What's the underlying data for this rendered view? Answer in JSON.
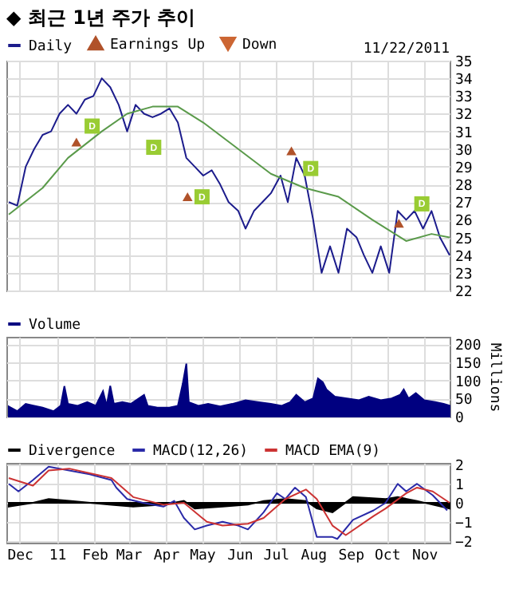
{
  "chart_data": [
    {
      "type": "line",
      "title": "◆ 최근 1년 주가 추이",
      "legend": "top",
      "grid": true,
      "tick_labels": "y",
      "xlim": [
        "2010-11-20",
        "2011-11-22"
      ],
      "xticks": [
        {
          "value": "2010-12-01",
          "label": null
        },
        {
          "value": "2011-01-01",
          "label": null
        },
        {
          "value": "2011-02-01",
          "label": null
        },
        {
          "value": "2011-03-01",
          "label": null
        },
        {
          "value": "2011-04-01",
          "label": null
        },
        {
          "value": "2011-05-01",
          "label": null
        },
        {
          "value": "2011-06-01",
          "label": null
        },
        {
          "value": "2011-07-01",
          "label": null
        },
        {
          "value": "2011-08-01",
          "label": null
        },
        {
          "value": "2011-09-01",
          "label": null
        },
        {
          "value": "2011-10-01",
          "label": null
        },
        {
          "value": "2011-11-01",
          "label": null
        }
      ],
      "ylim": [
        22,
        35
      ],
      "yticks": [
        22,
        23,
        24,
        25,
        26,
        27,
        28,
        29,
        30,
        31,
        32,
        33,
        34,
        35
      ],
      "annotations": [
        "11/22/2011",
        {
          "text": "D",
          "x": "2011-01-30",
          "y": 31.3
        },
        {
          "text": "D",
          "x": "2011-03-22",
          "y": 30.1
        },
        {
          "text": "D",
          "x": "2011-05-01",
          "y": 27.3
        },
        {
          "text": "D",
          "x": "2011-07-30",
          "y": 28.9
        },
        {
          "text": "D",
          "x": "2011-10-30",
          "y": 26.9
        }
      ],
      "series": [
        {
          "name": "Daily",
          "color": "#1c1c8c",
          "x": [
            "2010-11-22",
            "2010-11-29",
            "2010-12-06",
            "2010-12-13",
            "2010-12-20",
            "2010-12-27",
            "2011-01-03",
            "2011-01-10",
            "2011-01-17",
            "2011-01-24",
            "2011-01-31",
            "2011-02-07",
            "2011-02-14",
            "2011-02-21",
            "2011-02-28",
            "2011-03-07",
            "2011-03-14",
            "2011-03-21",
            "2011-03-28",
            "2011-04-04",
            "2011-04-11",
            "2011-04-18",
            "2011-04-25",
            "2011-05-02",
            "2011-05-09",
            "2011-05-16",
            "2011-05-23",
            "2011-05-31",
            "2011-06-06",
            "2011-06-13",
            "2011-06-20",
            "2011-06-27",
            "2011-07-05",
            "2011-07-11",
            "2011-07-18",
            "2011-07-25",
            "2011-08-01",
            "2011-08-08",
            "2011-08-15",
            "2011-08-22",
            "2011-08-29",
            "2011-09-06",
            "2011-09-12",
            "2011-09-19",
            "2011-09-26",
            "2011-10-03",
            "2011-10-10",
            "2011-10-17",
            "2011-10-24",
            "2011-10-31",
            "2011-11-07",
            "2011-11-14",
            "2011-11-22"
          ],
          "values": [
            27.0,
            26.8,
            29.0,
            30.0,
            30.8,
            31.0,
            32.0,
            32.5,
            32.0,
            32.8,
            33.0,
            34.0,
            33.5,
            32.5,
            31.0,
            32.5,
            32.0,
            31.8,
            32.0,
            32.3,
            31.5,
            29.5,
            29.0,
            28.5,
            28.8,
            28.0,
            27.0,
            26.5,
            25.5,
            26.5,
            27.0,
            27.5,
            28.5,
            27.0,
            29.5,
            28.5,
            26.0,
            23.0,
            24.5,
            23.0,
            25.5,
            25.0,
            24.0,
            23.0,
            24.5,
            23.0,
            26.5,
            26.0,
            26.5,
            25.5,
            26.5,
            25.0,
            24.0
          ]
        },
        {
          "color": "#5a9a4a",
          "x": [
            "2010-11-22",
            "2010-12-20",
            "2011-01-10",
            "2011-02-07",
            "2011-02-28",
            "2011-03-21",
            "2011-04-11",
            "2011-05-02",
            "2011-05-31",
            "2011-06-27",
            "2011-07-25",
            "2011-08-22",
            "2011-09-19",
            "2011-10-17",
            "2011-11-07",
            "2011-11-22"
          ],
          "values": [
            26.3,
            27.8,
            29.5,
            31.0,
            32.0,
            32.4,
            32.4,
            31.5,
            30.0,
            28.6,
            27.8,
            27.3,
            26.0,
            24.8,
            25.2,
            25.0
          ]
        },
        {
          "type": "scatter",
          "name": "Earnings Up",
          "color": "#b0522a",
          "marker": "triangle",
          "x": [
            "2011-01-17",
            "2011-04-19",
            "2011-07-14",
            "2011-10-11"
          ],
          "values": [
            30.4,
            27.3,
            29.9,
            25.8
          ]
        },
        {
          "type": "scatter",
          "name": "Down",
          "color": "#cc6633",
          "marker": "triangle-down"
        },
        {
          "type": "scatter",
          "color": "#99cc33",
          "marker": "square",
          "x": [
            "2011-01-30",
            "2011-03-22",
            "2011-05-01",
            "2011-07-30",
            "2011-10-30"
          ],
          "values": [
            31.3,
            30.1,
            27.3,
            28.9,
            26.9
          ]
        }
      ]
    },
    {
      "type": "area",
      "legend": "top",
      "grid": true,
      "tick_labels": "y",
      "ylabel": "Millions",
      "xlim": [
        "2010-11-20",
        "2011-11-22"
      ],
      "xticks": [
        {
          "value": "2010-12-01",
          "label": null
        },
        {
          "value": "2011-01-01",
          "label": null
        },
        {
          "value": "2011-02-01",
          "label": null
        },
        {
          "value": "2011-03-01",
          "label": null
        },
        {
          "value": "2011-04-01",
          "label": null
        },
        {
          "value": "2011-05-01",
          "label": null
        },
        {
          "value": "2011-06-01",
          "label": null
        },
        {
          "value": "2011-07-01",
          "label": null
        },
        {
          "value": "2011-08-01",
          "label": null
        },
        {
          "value": "2011-09-01",
          "label": null
        },
        {
          "value": "2011-10-01",
          "label": null
        },
        {
          "value": "2011-11-01",
          "label": null
        }
      ],
      "ylim": [
        0,
        220
      ],
      "yticks": [
        0,
        50,
        100,
        150,
        200
      ],
      "series": [
        {
          "name": "Volume",
          "color": "#000080",
          "x": [
            "2010-11-22",
            "2010-11-29",
            "2010-12-06",
            "2010-12-13",
            "2010-12-20",
            "2010-12-29",
            "2011-01-04",
            "2011-01-07",
            "2011-01-10",
            "2011-01-18",
            "2011-01-26",
            "2011-02-02",
            "2011-02-08",
            "2011-02-11",
            "2011-02-14",
            "2011-02-17",
            "2011-02-24",
            "2011-03-03",
            "2011-03-14",
            "2011-03-17",
            "2011-03-25",
            "2011-04-04",
            "2011-04-11",
            "2011-04-15",
            "2011-04-18",
            "2011-04-20",
            "2011-04-28",
            "2011-05-06",
            "2011-05-16",
            "2011-05-26",
            "2011-06-06",
            "2011-06-16",
            "2011-06-27",
            "2011-07-06",
            "2011-07-13",
            "2011-07-18",
            "2011-07-25",
            "2011-08-01",
            "2011-08-05",
            "2011-08-09",
            "2011-08-12",
            "2011-08-19",
            "2011-08-29",
            "2011-09-08",
            "2011-09-16",
            "2011-09-26",
            "2011-10-05",
            "2011-10-12",
            "2011-10-15",
            "2011-10-19",
            "2011-10-25",
            "2011-11-01",
            "2011-11-10",
            "2011-11-17",
            "2011-11-22"
          ],
          "values": [
            28,
            15,
            35,
            30,
            25,
            15,
            30,
            84,
            35,
            30,
            40,
            30,
            70,
            30,
            85,
            35,
            40,
            35,
            60,
            30,
            25,
            25,
            30,
            90,
            146,
            40,
            30,
            35,
            28,
            35,
            45,
            40,
            35,
            30,
            40,
            60,
            40,
            50,
            105,
            95,
            75,
            55,
            50,
            45,
            55,
            45,
            50,
            60,
            75,
            50,
            65,
            45,
            40,
            35,
            30
          ]
        }
      ]
    },
    {
      "type": "line",
      "legend": "top",
      "grid": true,
      "xlim": [
        "2010-11-20",
        "2011-11-22"
      ],
      "xticks": [
        {
          "value": "2010-12-01",
          "label": "Dec"
        },
        {
          "value": "2011-01-01",
          "label": "11"
        },
        {
          "value": "2011-02-01",
          "label": "Feb"
        },
        {
          "value": "2011-03-01",
          "label": "Mar"
        },
        {
          "value": "2011-04-01",
          "label": "Apr"
        },
        {
          "value": "2011-05-01",
          "label": "May"
        },
        {
          "value": "2011-06-01",
          "label": "Jun"
        },
        {
          "value": "2011-07-01",
          "label": "Jul"
        },
        {
          "value": "2011-08-01",
          "label": "Aug"
        },
        {
          "value": "2011-09-01",
          "label": "Sep"
        },
        {
          "value": "2011-10-01",
          "label": "Oct"
        },
        {
          "value": "2011-11-01",
          "label": "Nov"
        }
      ],
      "ylim": [
        -2.1,
        2.1
      ],
      "yticks": [
        -2,
        -1,
        0,
        1,
        2
      ],
      "series": [
        {
          "type": "area",
          "name": "Divergence",
          "color": "#000000",
          "x": [
            "2010-11-22",
            "2010-12-12",
            "2010-12-25",
            "2011-01-11",
            "2011-02-15",
            "2011-03-05",
            "2011-03-30",
            "2011-04-16",
            "2011-04-25",
            "2011-05-18",
            "2011-06-08",
            "2011-06-21",
            "2011-07-09",
            "2011-07-26",
            "2011-08-04",
            "2011-08-17",
            "2011-09-03",
            "2011-09-30",
            "2011-10-10",
            "2011-10-26",
            "2011-11-08",
            "2011-11-22"
          ],
          "values": [
            -0.2,
            0,
            0.2,
            0.1,
            -0.1,
            -0.2,
            -0.1,
            0.1,
            -0.3,
            -0.2,
            -0.1,
            0.1,
            0.2,
            0.1,
            -0.3,
            -0.5,
            0.3,
            0.2,
            0.3,
            0.1,
            -0.1,
            -0.3
          ]
        },
        {
          "name": "MACD(12,26)",
          "color": "#2a2aa8",
          "x": [
            "2010-11-22",
            "2010-11-30",
            "2010-12-12",
            "2010-12-25",
            "2011-01-11",
            "2011-01-28",
            "2011-02-15",
            "2011-02-19",
            "2011-02-28",
            "2011-03-13",
            "2011-03-30",
            "2011-04-08",
            "2011-04-16",
            "2011-04-25",
            "2011-05-05",
            "2011-05-18",
            "2011-05-31",
            "2011-06-08",
            "2011-06-21",
            "2011-07-02",
            "2011-07-09",
            "2011-07-17",
            "2011-07-26",
            "2011-08-04",
            "2011-08-17",
            "2011-08-21",
            "2011-09-03",
            "2011-09-20",
            "2011-09-30",
            "2011-10-10",
            "2011-10-17",
            "2011-10-26",
            "2011-11-08",
            "2011-11-20"
          ],
          "values": [
            1.0,
            0.6,
            1.2,
            1.9,
            1.7,
            1.5,
            1.2,
            0.8,
            0.2,
            0,
            -0.2,
            0.1,
            -0.8,
            -1.4,
            -1.2,
            -1.0,
            -1.2,
            -1.4,
            -0.5,
            0.5,
            0.2,
            0.8,
            0.3,
            -1.8,
            -1.8,
            -1.9,
            -0.9,
            -0.4,
            0,
            1.0,
            0.6,
            1.0,
            0.4,
            -0.4
          ]
        },
        {
          "name": "MACD EMA(9)",
          "color": "#cc3333",
          "x": [
            "2010-11-22",
            "2010-12-12",
            "2010-12-25",
            "2011-01-11",
            "2011-02-15",
            "2011-03-05",
            "2011-03-30",
            "2011-04-16",
            "2011-05-05",
            "2011-05-18",
            "2011-06-08",
            "2011-06-21",
            "2011-07-09",
            "2011-07-26",
            "2011-08-04",
            "2011-08-17",
            "2011-08-28",
            "2011-09-20",
            "2011-09-30",
            "2011-10-17",
            "2011-10-26",
            "2011-11-08",
            "2011-11-22"
          ],
          "values": [
            1.3,
            0.9,
            1.7,
            1.8,
            1.3,
            0.3,
            -0.1,
            0,
            -1.0,
            -1.2,
            -1.1,
            -0.8,
            0.2,
            0.7,
            0.2,
            -1.2,
            -1.7,
            -0.7,
            -0.3,
            0.5,
            0.8,
            0.6,
            0
          ]
        }
      ]
    }
  ]
}
